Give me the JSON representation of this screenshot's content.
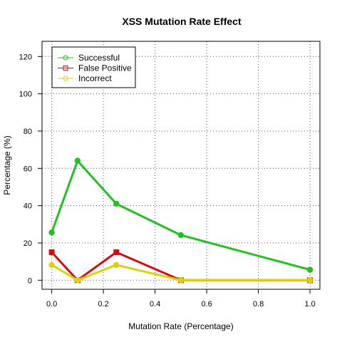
{
  "chart_data": {
    "type": "line",
    "title": "XSS Mutation Rate Effect",
    "xlabel": "Mutation Rate (Percentage)",
    "ylabel": "Percentage (%)",
    "xlim": [
      0,
      1
    ],
    "ylim": [
      0,
      120
    ],
    "x_ticks": [
      "0.0",
      "0.2",
      "0.4",
      "0.6",
      "0.8",
      "1.0"
    ],
    "y_ticks": [
      "0",
      "20",
      "40",
      "60",
      "80",
      "100",
      "120"
    ],
    "x_tick_values": [
      0,
      0.2,
      0.4,
      0.6,
      0.8,
      1.0
    ],
    "y_tick_values": [
      0,
      20,
      40,
      60,
      80,
      100,
      120
    ],
    "grid": true,
    "legend_position": "top-left",
    "x": [
      0.0,
      0.1,
      0.25,
      0.5,
      1.0
    ],
    "series": [
      {
        "name": "Successful",
        "color": "#22c022",
        "marker": "circle",
        "values": [
          25.6,
          64.1,
          41.0,
          24.2,
          5.6
        ]
      },
      {
        "name": "False Positive",
        "color": "#d01010",
        "marker": "square",
        "values": [
          15.0,
          0.0,
          15.0,
          0.0,
          0.0
        ]
      },
      {
        "name": "Incorrect",
        "color": "#dcd010",
        "marker": "circle",
        "values": [
          8.2,
          0.0,
          8.2,
          0.0,
          0.0
        ]
      }
    ]
  }
}
